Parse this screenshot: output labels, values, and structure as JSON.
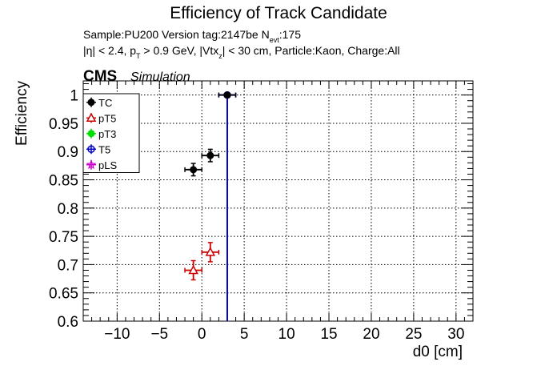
{
  "chart_data": {
    "type": "scatter",
    "title": "Efficiency of Track Candidate",
    "info_line1": {
      "prefix": "Sample:PU200   Version tag:2147be  N",
      "sub": "evt",
      "suffix": ":175"
    },
    "info_line2": {
      "a": "|η| < 2.4, p",
      "a_sub": "T",
      "b": " > 0.9 GeV, |Vtx",
      "b_sub": "z",
      "c": "| < 30 cm, Particle:Kaon, Charge:All"
    },
    "cms_label": "CMS",
    "simulation_label": "Simulation",
    "xlabel": "d0 [cm]",
    "ylabel": "Efficiency",
    "xlim": [
      -14,
      32
    ],
    "ylim": [
      0.6,
      1.025
    ],
    "x_ticks": [
      -10,
      -5,
      0,
      5,
      10,
      15,
      20,
      25,
      30
    ],
    "x_tick_labels": [
      "−10",
      "−5",
      "0",
      "5",
      "10",
      "15",
      "20",
      "25",
      "30"
    ],
    "y_ticks": [
      0.6,
      0.65,
      0.7,
      0.75,
      0.8,
      0.85,
      0.9,
      0.95,
      1.0
    ],
    "y_tick_labels": [
      "0.6",
      "0.65",
      "0.7",
      "0.75",
      "0.8",
      "0.85",
      "0.9",
      "0.95",
      "1"
    ],
    "grid": true,
    "legend_position": "top-left",
    "series": [
      {
        "name": "TC",
        "color": "#000000",
        "marker": "filled-circle",
        "points": [
          {
            "x": -1,
            "y": 0.868,
            "xerr": 1,
            "yerr": 0.011
          },
          {
            "x": 1,
            "y": 0.893,
            "xerr": 1,
            "yerr": 0.011
          },
          {
            "x": 3,
            "y": 1.0,
            "xerr": 1,
            "yerr": 0
          }
        ]
      },
      {
        "name": "pT5",
        "color": "#cc0000",
        "marker": "open-triangle-up",
        "points": [
          {
            "x": -1,
            "y": 0.69,
            "xerr": 1,
            "yerr": 0.017
          },
          {
            "x": 1,
            "y": 0.722,
            "xerr": 1,
            "yerr": 0.017
          }
        ]
      },
      {
        "name": "pT3",
        "color": "#00dd00",
        "marker": "filled-circle",
        "points": []
      },
      {
        "name": "T5",
        "color": "#0000cc",
        "marker": "open-circle",
        "points": [
          {
            "x": 3,
            "y": 1.0,
            "xerr": 1,
            "yerr_low": 0.4,
            "yerr_high": 0
          }
        ]
      },
      {
        "name": "pLS",
        "color": "#cc00cc",
        "marker": "open-star",
        "points": []
      }
    ]
  }
}
